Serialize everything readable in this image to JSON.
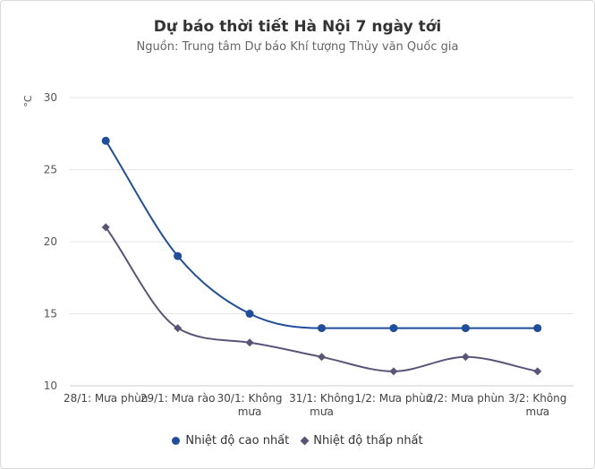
{
  "chart_data": {
    "type": "line",
    "title": "Dự báo thời tiết Hà Nội 7 ngày tới",
    "subtitle": "Nguồn: Trung tâm Dự báo Khí tượng Thủy văn Quốc gia",
    "ylabel": "°C",
    "ylim": [
      10,
      30
    ],
    "yticks": [
      10,
      15,
      20,
      25,
      30
    ],
    "grid": true,
    "legend_position": "bottom",
    "categories": [
      [
        "28/1: Mưa phùn"
      ],
      [
        "29/1: Mưa rào"
      ],
      [
        "30/1: Không",
        "mưa"
      ],
      [
        "31/1: Không",
        "mưa"
      ],
      [
        "1/2: Mưa phùn"
      ],
      [
        "2/2: Mưa phùn"
      ],
      [
        "3/2: Không",
        "mưa"
      ]
    ],
    "series": [
      {
        "name": "Nhiệt độ cao nhất",
        "values": [
          27,
          19,
          15,
          14,
          14,
          14,
          14
        ],
        "color": "#1f4e9c",
        "marker": "circle"
      },
      {
        "name": "Nhiệt độ thấp nhất",
        "values": [
          21,
          14,
          13,
          12,
          11,
          12,
          11
        ],
        "color": "#5a5578",
        "marker": "diamond"
      }
    ]
  }
}
